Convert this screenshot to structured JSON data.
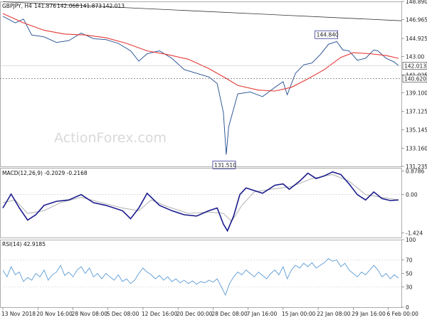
{
  "chart_data": [
    {
      "panel": "price",
      "type": "ohlc",
      "header": "GBPJPY, H4",
      "ohlc": [
        "141.876",
        "142.068",
        "141.873",
        "142.013"
      ],
      "y_ticks": [
        "148.890",
        "146.965",
        "144.925",
        "143.00",
        "142.013",
        "141.025",
        "140.620",
        "139.100",
        "137.125",
        "135.145",
        "133.160",
        "131.235"
      ],
      "ylim": [
        131.235,
        148.89
      ],
      "price_series": [
        {
          "t": 0,
          "v": 147.3
        },
        {
          "t": 3,
          "v": 146.6
        },
        {
          "t": 5,
          "v": 147.0
        },
        {
          "t": 7,
          "v": 145.3
        },
        {
          "t": 10,
          "v": 145.1
        },
        {
          "t": 13,
          "v": 144.5
        },
        {
          "t": 16,
          "v": 144.7
        },
        {
          "t": 19,
          "v": 145.5
        },
        {
          "t": 22,
          "v": 144.9
        },
        {
          "t": 25,
          "v": 144.8
        },
        {
          "t": 28,
          "v": 144.4
        },
        {
          "t": 31,
          "v": 143.6
        },
        {
          "t": 33,
          "v": 142.5
        },
        {
          "t": 35,
          "v": 143.3
        },
        {
          "t": 38,
          "v": 143.6
        },
        {
          "t": 41,
          "v": 142.8
        },
        {
          "t": 44,
          "v": 141.6
        },
        {
          "t": 47,
          "v": 141.2
        },
        {
          "t": 50,
          "v": 140.8
        },
        {
          "t": 52,
          "v": 140.1
        },
        {
          "t": 53.5,
          "v": 137.0
        },
        {
          "t": 54.2,
          "v": 132.5
        },
        {
          "t": 54.8,
          "v": 135.5
        },
        {
          "t": 57,
          "v": 139.0
        },
        {
          "t": 60,
          "v": 139.2
        },
        {
          "t": 63,
          "v": 138.7
        },
        {
          "t": 66,
          "v": 139.7
        },
        {
          "t": 68,
          "v": 140.3
        },
        {
          "t": 69,
          "v": 138.9
        },
        {
          "t": 71,
          "v": 141.2
        },
        {
          "t": 73,
          "v": 142.1
        },
        {
          "t": 75,
          "v": 142.3
        },
        {
          "t": 77,
          "v": 143.2
        },
        {
          "t": 79,
          "v": 144.3
        },
        {
          "t": 81,
          "v": 144.6
        },
        {
          "t": 82.5,
          "v": 143.7
        },
        {
          "t": 84,
          "v": 143.6
        },
        {
          "t": 86,
          "v": 142.6
        },
        {
          "t": 88,
          "v": 142.8
        },
        {
          "t": 90,
          "v": 143.7
        },
        {
          "t": 91,
          "v": 143.6
        },
        {
          "t": 93,
          "v": 142.8
        },
        {
          "t": 95,
          "v": 142.4
        },
        {
          "t": 96,
          "v": 142.0
        }
      ],
      "sma_series": [
        {
          "t": 0,
          "v": 147.6
        },
        {
          "t": 5,
          "v": 146.6
        },
        {
          "t": 10,
          "v": 145.8
        },
        {
          "t": 15,
          "v": 145.4
        },
        {
          "t": 20,
          "v": 145.3
        },
        {
          "t": 25,
          "v": 145.0
        },
        {
          "t": 30,
          "v": 144.4
        },
        {
          "t": 35,
          "v": 143.6
        },
        {
          "t": 40,
          "v": 143.2
        },
        {
          "t": 45,
          "v": 142.7
        },
        {
          "t": 50,
          "v": 141.7
        },
        {
          "t": 54,
          "v": 140.7
        },
        {
          "t": 57,
          "v": 139.9
        },
        {
          "t": 62,
          "v": 139.4
        },
        {
          "t": 66,
          "v": 139.3
        },
        {
          "t": 70,
          "v": 139.7
        },
        {
          "t": 74,
          "v": 140.6
        },
        {
          "t": 78,
          "v": 141.6
        },
        {
          "t": 82,
          "v": 142.9
        },
        {
          "t": 85,
          "v": 143.4
        },
        {
          "t": 89,
          "v": 143.3
        },
        {
          "t": 93,
          "v": 143.1
        },
        {
          "t": 96,
          "v": 142.8
        }
      ],
      "trendline": [
        {
          "t": 0,
          "v": 148.85
        },
        {
          "t": 96,
          "v": 146.82
        }
      ],
      "support_level": 140.62,
      "current_price": 142.013,
      "callouts": [
        {
          "text": "144.840",
          "t": 78.5,
          "v": 144.84
        },
        {
          "text": "131.510",
          "t": 53,
          "v": 131.51
        }
      ],
      "watermark": "ActionForex.com"
    },
    {
      "panel": "macd",
      "type": "line",
      "header": "MACD(12,26,9) -0.2029 -0.2168",
      "y_ticks": [
        "0.8786",
        "0.00",
        "-1.424"
      ],
      "ylim": [
        -1.424,
        0.8786
      ],
      "macd_series": [
        {
          "t": 0,
          "v": -0.5
        },
        {
          "t": 2,
          "v": 0.02
        },
        {
          "t": 4,
          "v": -0.5
        },
        {
          "t": 6,
          "v": -0.95
        },
        {
          "t": 8,
          "v": -0.75
        },
        {
          "t": 10,
          "v": -0.4
        },
        {
          "t": 13,
          "v": -0.25
        },
        {
          "t": 16,
          "v": -0.2
        },
        {
          "t": 19,
          "v": 0.0
        },
        {
          "t": 22,
          "v": -0.3
        },
        {
          "t": 25,
          "v": -0.4
        },
        {
          "t": 29,
          "v": -0.6
        },
        {
          "t": 31,
          "v": -0.9
        },
        {
          "t": 33,
          "v": -0.5
        },
        {
          "t": 35,
          "v": 0.05
        },
        {
          "t": 38,
          "v": -0.4
        },
        {
          "t": 41,
          "v": -0.6
        },
        {
          "t": 44,
          "v": -0.75
        },
        {
          "t": 47,
          "v": -0.8
        },
        {
          "t": 50,
          "v": -0.6
        },
        {
          "t": 52,
          "v": -0.5
        },
        {
          "t": 53.5,
          "v": -1.1
        },
        {
          "t": 54.5,
          "v": -1.35
        },
        {
          "t": 56,
          "v": -0.8
        },
        {
          "t": 57.5,
          "v": 0.0
        },
        {
          "t": 59,
          "v": 0.25
        },
        {
          "t": 61,
          "v": 0.15
        },
        {
          "t": 63,
          "v": 0.05
        },
        {
          "t": 66,
          "v": 0.35
        },
        {
          "t": 68,
          "v": 0.4
        },
        {
          "t": 69.5,
          "v": 0.2
        },
        {
          "t": 72,
          "v": 0.5
        },
        {
          "t": 74,
          "v": 0.8
        },
        {
          "t": 76,
          "v": 0.6
        },
        {
          "t": 78,
          "v": 0.7
        },
        {
          "t": 80,
          "v": 0.85
        },
        {
          "t": 82,
          "v": 0.75
        },
        {
          "t": 84,
          "v": 0.4
        },
        {
          "t": 86,
          "v": 0.0
        },
        {
          "t": 88,
          "v": -0.2
        },
        {
          "t": 90,
          "v": 0.1
        },
        {
          "t": 92,
          "v": -0.15
        },
        {
          "t": 94,
          "v": -0.22
        },
        {
          "t": 96,
          "v": -0.2
        }
      ],
      "signal_series": [
        {
          "t": 0,
          "v": -0.3
        },
        {
          "t": 3,
          "v": -0.2
        },
        {
          "t": 6,
          "v": -0.7
        },
        {
          "t": 10,
          "v": -0.6
        },
        {
          "t": 14,
          "v": -0.3
        },
        {
          "t": 19,
          "v": -0.1
        },
        {
          "t": 24,
          "v": -0.3
        },
        {
          "t": 29,
          "v": -0.5
        },
        {
          "t": 33,
          "v": -0.6
        },
        {
          "t": 36,
          "v": -0.2
        },
        {
          "t": 40,
          "v": -0.45
        },
        {
          "t": 45,
          "v": -0.7
        },
        {
          "t": 50,
          "v": -0.65
        },
        {
          "t": 53.5,
          "v": -0.7
        },
        {
          "t": 55.5,
          "v": -1.0
        },
        {
          "t": 58,
          "v": -0.4
        },
        {
          "t": 61,
          "v": 0.1
        },
        {
          "t": 65,
          "v": 0.2
        },
        {
          "t": 70,
          "v": 0.3
        },
        {
          "t": 75,
          "v": 0.6
        },
        {
          "t": 80,
          "v": 0.75
        },
        {
          "t": 84,
          "v": 0.5
        },
        {
          "t": 88,
          "v": 0.0
        },
        {
          "t": 92,
          "v": -0.1
        },
        {
          "t": 96,
          "v": -0.2
        }
      ]
    },
    {
      "panel": "rsi",
      "type": "line",
      "header": "RSI(14) 42.9185",
      "y_ticks": [
        "100",
        "70",
        "50",
        "30",
        "0"
      ],
      "ylim": [
        0,
        100
      ],
      "levels": [
        70,
        30
      ],
      "rsi_series": [
        {
          "t": 0,
          "v": 55
        },
        {
          "t": 1,
          "v": 45
        },
        {
          "t": 2,
          "v": 60
        },
        {
          "t": 3,
          "v": 48
        },
        {
          "t": 4,
          "v": 52
        },
        {
          "t": 5,
          "v": 38
        },
        {
          "t": 6,
          "v": 44
        },
        {
          "t": 7,
          "v": 40
        },
        {
          "t": 8,
          "v": 50
        },
        {
          "t": 9,
          "v": 45
        },
        {
          "t": 10,
          "v": 55
        },
        {
          "t": 11,
          "v": 40
        },
        {
          "t": 12,
          "v": 48
        },
        {
          "t": 13,
          "v": 52
        },
        {
          "t": 14,
          "v": 62
        },
        {
          "t": 15,
          "v": 47
        },
        {
          "t": 16,
          "v": 52
        },
        {
          "t": 17,
          "v": 45
        },
        {
          "t": 18,
          "v": 55
        },
        {
          "t": 19,
          "v": 60
        },
        {
          "t": 20,
          "v": 50
        },
        {
          "t": 21,
          "v": 58
        },
        {
          "t": 22,
          "v": 45
        },
        {
          "t": 23,
          "v": 50
        },
        {
          "t": 24,
          "v": 42
        },
        {
          "t": 25,
          "v": 50
        },
        {
          "t": 26,
          "v": 45
        },
        {
          "t": 27,
          "v": 40
        },
        {
          "t": 28,
          "v": 48
        },
        {
          "t": 29,
          "v": 38
        },
        {
          "t": 30,
          "v": 42
        },
        {
          "t": 31,
          "v": 35
        },
        {
          "t": 32,
          "v": 40
        },
        {
          "t": 33,
          "v": 50
        },
        {
          "t": 34,
          "v": 58
        },
        {
          "t": 35,
          "v": 52
        },
        {
          "t": 36,
          "v": 48
        },
        {
          "t": 37,
          "v": 42
        },
        {
          "t": 38,
          "v": 47
        },
        {
          "t": 39,
          "v": 40
        },
        {
          "t": 40,
          "v": 45
        },
        {
          "t": 41,
          "v": 38
        },
        {
          "t": 42,
          "v": 42
        },
        {
          "t": 43,
          "v": 36
        },
        {
          "t": 44,
          "v": 40
        },
        {
          "t": 45,
          "v": 35
        },
        {
          "t": 46,
          "v": 39
        },
        {
          "t": 47,
          "v": 34
        },
        {
          "t": 48,
          "v": 38
        },
        {
          "t": 49,
          "v": 36
        },
        {
          "t": 50,
          "v": 40
        },
        {
          "t": 51,
          "v": 37
        },
        {
          "t": 52,
          "v": 42
        },
        {
          "t": 53,
          "v": 30
        },
        {
          "t": 54,
          "v": 18
        },
        {
          "t": 55,
          "v": 35
        },
        {
          "t": 56,
          "v": 45
        },
        {
          "t": 57,
          "v": 52
        },
        {
          "t": 58,
          "v": 48
        },
        {
          "t": 59,
          "v": 55
        },
        {
          "t": 60,
          "v": 50
        },
        {
          "t": 61,
          "v": 45
        },
        {
          "t": 62,
          "v": 52
        },
        {
          "t": 63,
          "v": 47
        },
        {
          "t": 64,
          "v": 42
        },
        {
          "t": 65,
          "v": 50
        },
        {
          "t": 66,
          "v": 55
        },
        {
          "t": 67,
          "v": 48
        },
        {
          "t": 68,
          "v": 60
        },
        {
          "t": 69,
          "v": 42
        },
        {
          "t": 70,
          "v": 55
        },
        {
          "t": 71,
          "v": 62
        },
        {
          "t": 72,
          "v": 58
        },
        {
          "t": 73,
          "v": 65
        },
        {
          "t": 74,
          "v": 60
        },
        {
          "t": 75,
          "v": 66
        },
        {
          "t": 76,
          "v": 58
        },
        {
          "t": 77,
          "v": 62
        },
        {
          "t": 78,
          "v": 66
        },
        {
          "t": 79,
          "v": 72
        },
        {
          "t": 80,
          "v": 68
        },
        {
          "t": 81,
          "v": 70
        },
        {
          "t": 82,
          "v": 60
        },
        {
          "t": 83,
          "v": 65
        },
        {
          "t": 84,
          "v": 55
        },
        {
          "t": 85,
          "v": 50
        },
        {
          "t": 86,
          "v": 45
        },
        {
          "t": 87,
          "v": 52
        },
        {
          "t": 88,
          "v": 48
        },
        {
          "t": 89,
          "v": 55
        },
        {
          "t": 90,
          "v": 62
        },
        {
          "t": 91,
          "v": 55
        },
        {
          "t": 92,
          "v": 45
        },
        {
          "t": 93,
          "v": 50
        },
        {
          "t": 94,
          "v": 42
        },
        {
          "t": 95,
          "v": 48
        },
        {
          "t": 96,
          "v": 43
        }
      ]
    }
  ],
  "x_axis": {
    "labels": [
      "13 Nov 2018",
      "20 Nov 16:00",
      "28 Nov 08:00",
      "5 Dec 08:00",
      "12 Dec 16:00",
      "20 Dec 00:00",
      "28 Dec 08:00",
      "7 Jan 16:00",
      "15 Jan 00:00",
      "22 Jan 08:00",
      "29 Jan 16:00",
      "6 Feb 00:00"
    ],
    "label_positions": [
      0,
      8.5,
      17,
      25.5,
      34,
      42.5,
      51,
      59.5,
      68,
      76.5,
      85,
      93.5
    ]
  },
  "colors": {
    "price": "#1e4a8c",
    "sma": "#e53935",
    "trendline": "#333333",
    "macd": "#1a1a8c",
    "signal": "#aaaaaa",
    "rsi": "#5b9bd5",
    "grid": "#c8c8c8",
    "panel_border": "#999999",
    "callout_border": "#1a1a8c",
    "current_price_fill": "#ffffff"
  }
}
